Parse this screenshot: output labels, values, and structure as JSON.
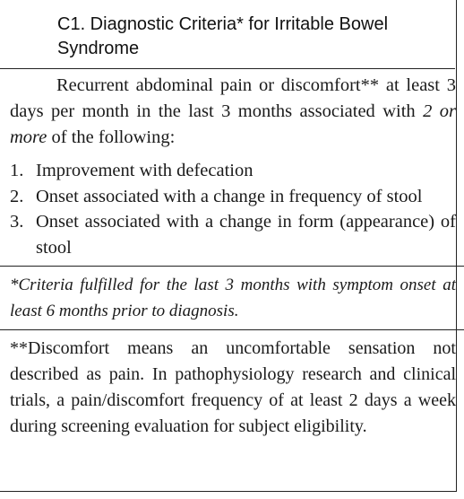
{
  "title": "C1. Diagnostic Criteria* for Irritable Bowel Syndrome",
  "intro": {
    "lead": "Recurrent abdominal pain or discomfort** at least 3 days per month in the last 3 months associated with ",
    "emphasis": "2 or more",
    "tail": " of the following:"
  },
  "criteria": [
    {
      "number": "1.",
      "text": "Improvement with defecation"
    },
    {
      "number": "2.",
      "text": "Onset associated with a change in frequency of stool"
    },
    {
      "number": "3.",
      "text": "Onset associated with a change in form (appearance) of stool"
    }
  ],
  "footnote_1": "*Criteria fulfilled for the last 3 months with symptom onset at least 6 months prior to diagnosis.",
  "footnote_2": "**Discomfort means an uncomfortable sensation not described as pain. In pathophysiology research and clinical trials, a pain/discomfort frequency of at least 2 days a week during screening evaluation for subject eligibility."
}
